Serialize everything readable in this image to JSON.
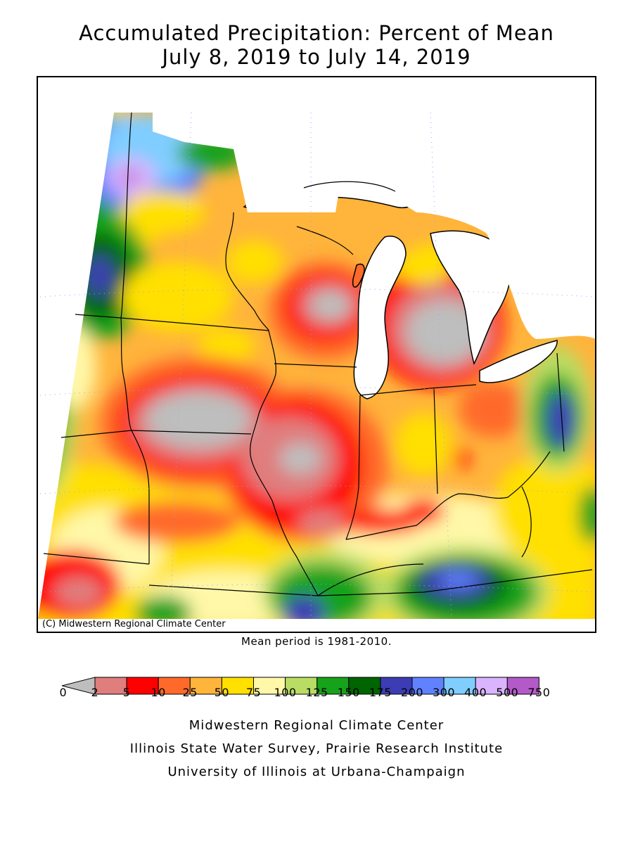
{
  "title": {
    "line1": "Accumulated Precipitation: Percent of Mean",
    "line2": "July 8, 2019 to July 14, 2019"
  },
  "map": {
    "copyright": "(C) Midwestern Regional Climate Center",
    "mean_note": "Mean period is 1981-2010."
  },
  "legend": {
    "labels": [
      "0",
      "2",
      "5",
      "10",
      "25",
      "50",
      "75",
      "100",
      "125",
      "150",
      "175",
      "200",
      "300",
      "400",
      "500",
      "750"
    ],
    "colors": {
      "0": "#bebebe",
      "2": "#e07d7d",
      "5": "#ff0000",
      "10": "#ff6a2a",
      "25": "#ffb43c",
      "50": "#ffe000",
      "75": "#fff8a8",
      "100": "#b9dc64",
      "125": "#16a21a",
      "150": "#006400",
      "175": "#3c3cb4",
      "200": "#6082ff",
      "300": "#80cdff",
      "400": "#dab4ff",
      "500": "#b45ac8"
    }
  },
  "credits": {
    "line1": "Midwestern Regional Climate Center",
    "line2": "Illinois State Water Survey, Prairie Research Institute",
    "line3": "University of Illinois at Urbana-Champaign"
  }
}
